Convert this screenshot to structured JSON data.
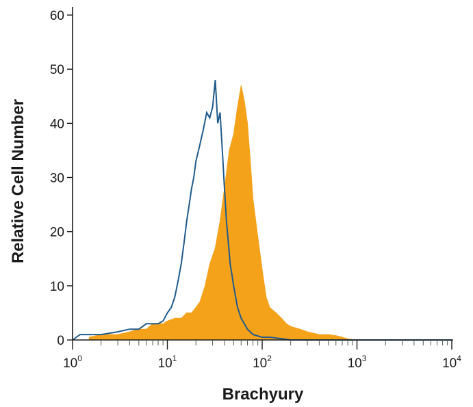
{
  "chart_data": {
    "type": "histogram",
    "xlabel": "Brachyury",
    "ylabel": "Relative Cell Number",
    "x_scale": "log",
    "xlim": [
      1,
      10000
    ],
    "ylim": [
      0,
      60
    ],
    "x_ticks": [
      {
        "value": 1,
        "base": "10",
        "exp": "0"
      },
      {
        "value": 10,
        "base": "10",
        "exp": "1"
      },
      {
        "value": 100,
        "base": "10",
        "exp": "2"
      },
      {
        "value": 1000,
        "base": "10",
        "exp": "3"
      },
      {
        "value": 10000,
        "base": "10",
        "exp": "4"
      }
    ],
    "y_ticks": [
      0,
      10,
      20,
      30,
      40,
      50,
      60
    ],
    "grid": false,
    "legend": "none",
    "series": [
      {
        "style": "filled",
        "color": "#f5a21b",
        "x": [
          1.5,
          2,
          3,
          4,
          5,
          6,
          7,
          8,
          9,
          10,
          12,
          14,
          16,
          18,
          20,
          22,
          25,
          28,
          32,
          36,
          40,
          45,
          50,
          55,
          60,
          65,
          70,
          75,
          80,
          90,
          100,
          110,
          120,
          140,
          160,
          180,
          200,
          250,
          300,
          400,
          500,
          600,
          700,
          800,
          1000
        ],
        "values": [
          0.5,
          1,
          1,
          1.5,
          2,
          2,
          3,
          3,
          3,
          3.5,
          4,
          4,
          5,
          5,
          6,
          7,
          10,
          14,
          17,
          22,
          28,
          35,
          38,
          43,
          47,
          44,
          40,
          33,
          26,
          19,
          13,
          8,
          6,
          5,
          4,
          3,
          2.5,
          2,
          1.5,
          1,
          1,
          0.8,
          0.5,
          0.2,
          0
        ]
      },
      {
        "style": "outline",
        "color": "#1f5b8c",
        "x": [
          1,
          1.2,
          1.5,
          2,
          3,
          4,
          5,
          6,
          7,
          8,
          9,
          10,
          11,
          12,
          13,
          14,
          15,
          16,
          17,
          18,
          19,
          20,
          22,
          24,
          26,
          28,
          30,
          32,
          34,
          36,
          38,
          40,
          42,
          44,
          46,
          48,
          50,
          55,
          60,
          70,
          80,
          100,
          120,
          150,
          200,
          300
        ],
        "values": [
          0,
          1,
          1,
          1,
          1.5,
          2,
          2,
          3,
          3,
          3,
          3.5,
          5,
          6,
          8,
          11,
          14,
          18,
          22,
          25,
          28,
          30,
          33,
          36,
          39,
          42,
          41,
          43,
          48,
          40,
          42,
          35,
          28,
          22,
          18,
          14,
          12,
          10,
          6,
          4,
          2,
          1,
          0.5,
          0.5,
          0.3,
          0,
          0
        ]
      }
    ]
  }
}
